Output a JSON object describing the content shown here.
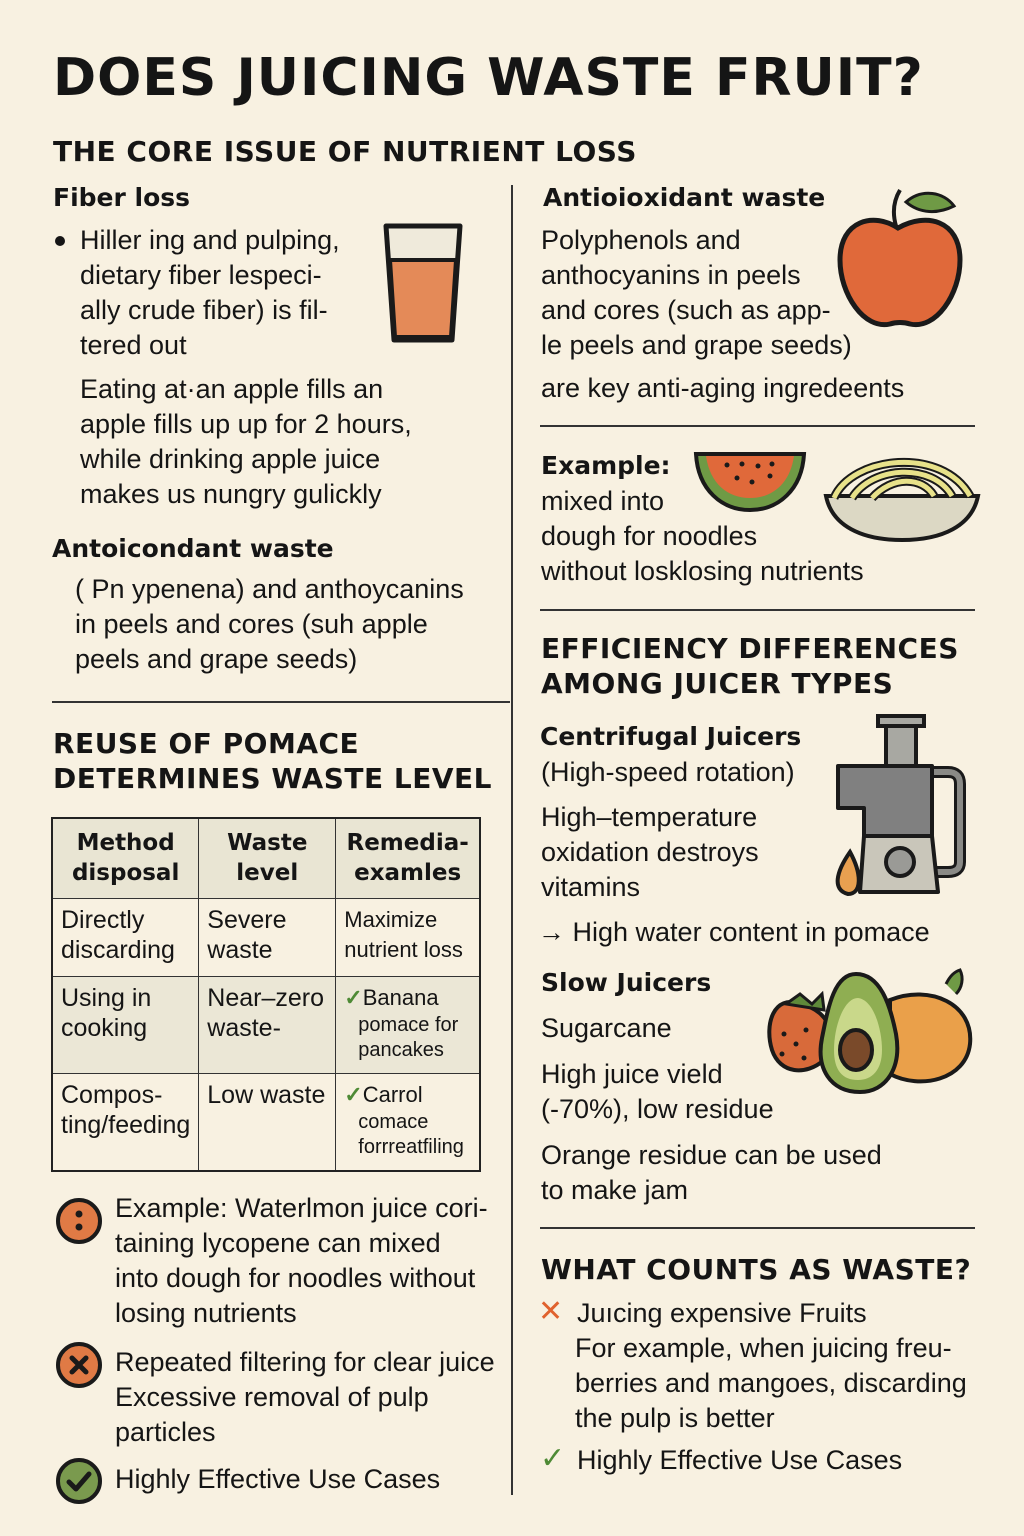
{
  "title": "DOES JUICING WASTE FRUIT?",
  "subtitle": "THE CORE ISSUE OF NUTRIENT LOSS",
  "left": {
    "fiber": {
      "heading": "Fiber loss",
      "bullet_lines": [
        "Hiller ing and pulping,",
        "dietary fiber lespeci-",
        "ally crude fiber) is fil-",
        "tered out"
      ],
      "para_lines": [
        "Eating at·an apple fills an",
        "apple fills up up for 2 hours,",
        "while drinking apple juice",
        "makes us nungry gulickly"
      ]
    },
    "antioxidant": {
      "heading": "Antoicondant waste",
      "lines": [
        "( Pn ypenena) and anthoycanins",
        "in peels and cores (suh apple",
        "peels and grape seeds)"
      ]
    },
    "reuse": {
      "heading_lines": [
        "REUSE OF POMACE",
        "DETERMINES WASTE LEVEL"
      ],
      "table": {
        "headers": [
          "Method disposal",
          "Waste level",
          "Remedia-examles"
        ],
        "rows": [
          [
            "Directly discarding",
            "Severe waste",
            "Maximize nutrient loss"
          ],
          [
            "Using in cooking",
            "Near–zero waste-",
            "Banana",
            "pomace for pancakes"
          ],
          [
            "Compos-ting/feeding",
            "Low waste",
            "Carrol",
            "comace forrreatfiling"
          ]
        ],
        "check_mark": "✓"
      }
    },
    "notes": [
      {
        "icon": "info-icon",
        "lines": [
          "Example: Waterlmon juice cori-",
          "taining lycopene can mixed",
          "into dough for noodles without",
          "losing nutrients"
        ]
      },
      {
        "icon": "x-circle-icon",
        "lines": [
          "Repeated filtering for clear juice",
          "Excessive removal of pulp",
          "particles"
        ]
      },
      {
        "icon": "check-circle-icon",
        "lines": [
          "Highly Effective Use Cases"
        ]
      }
    ]
  },
  "right": {
    "antioxidant": {
      "heading": "Antioioxidant waste",
      "lines": [
        "Polyphenols and",
        "anthocyanins in peels",
        "and cores (such as app-",
        "le peels and grape seeds)"
      ],
      "extra": "are key anti-aging ingredeents"
    },
    "example": {
      "heading": "Example:",
      "lines": [
        "mixed into",
        "dough for noodles",
        "without losklosing nutrients"
      ]
    },
    "efficiency": {
      "heading_lines": [
        "EFFICIENCY DIFFERENCES",
        "AMONG JUICER TYPES"
      ],
      "centrifugal": {
        "heading": "Centrifugal Juicers",
        "sub": "(High-speed rotation)",
        "lines": [
          "High–temperature",
          "oxidation destroys",
          "vitamins"
        ],
        "arrow_text": "→ High water content in pomace"
      },
      "slow": {
        "heading": "Slow Juicers",
        "sub": "Sugarcane",
        "lines": [
          "High juice vield",
          "(-70%), low residue"
        ],
        "lines2": [
          "Orange residue can be used",
          "to make jam"
        ]
      }
    },
    "waste": {
      "heading": "WHAT COUNTS AS WASTE?",
      "x_mark": "✕",
      "bad_title": "Juıcing expensive Fruits",
      "bad_lines": [
        "For example, when juicing freu-",
        "berries and mangoes, discarding",
        "the pulp is better"
      ],
      "check_mark": "✓",
      "good": "Highly Effective Use Cases"
    }
  },
  "colors": {
    "background": "#f8f1e1",
    "orange": "#e07a45",
    "green": "#6f9a45",
    "gray": "#8a8a86"
  }
}
